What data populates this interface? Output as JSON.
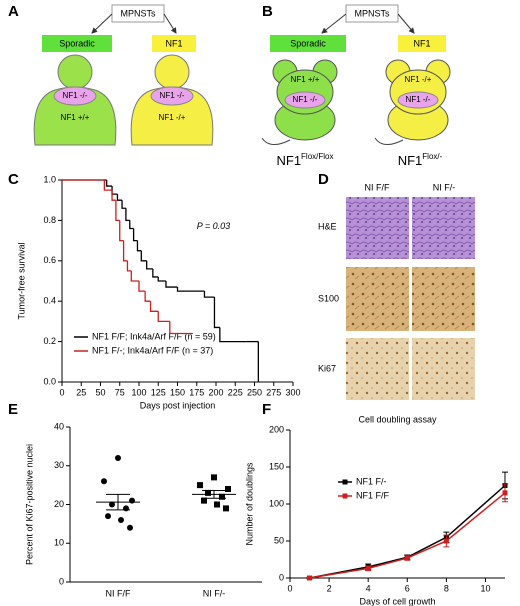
{
  "panel_a": {
    "label": "A",
    "top": "MPNSTs",
    "left": "Sporadic",
    "right": "NF1",
    "left_inner": "NF1 -/-",
    "left_outer": "NF1 +/+",
    "right_inner": "NF1 -/-",
    "right_outer": "NF1 -/+"
  },
  "panel_b": {
    "label": "B",
    "top": "MPNSTs",
    "left": "Sporadic",
    "right": "NF1",
    "left_outer": "NF1 +/+",
    "left_inner": "NF1 -/-",
    "right_outer": "NF1 -/+",
    "right_inner": "NF1 -/-",
    "left_genotype": {
      "base": "NF1",
      "sup": "Flox/Flox"
    },
    "right_genotype": {
      "base": "NF1",
      "sup": "Flox/-"
    }
  },
  "panel_d": {
    "label": "D",
    "columns": [
      "NI F/F",
      "NI F/-"
    ],
    "rows": [
      "H&E",
      "S100",
      "Ki67"
    ]
  },
  "chart_data": [
    {
      "type": "survival",
      "panel_label": "C",
      "ylabel": "Tumor-free survival",
      "xlabel": "Days post injection",
      "annotation": "P = 0.03",
      "xlim": [
        0,
        300
      ],
      "xticks": [
        0,
        25,
        50,
        75,
        100,
        125,
        150,
        175,
        200,
        225,
        250,
        275,
        300
      ],
      "ylim": [
        0,
        1
      ],
      "yticks": [
        {
          "value": 0,
          "label": "0.0"
        },
        {
          "value": 0.2,
          "label": "0.2"
        },
        {
          "value": 0.4,
          "label": "0.4"
        },
        {
          "value": 0.6,
          "label": "0.6"
        },
        {
          "value": 0.8,
          "label": "0.8"
        },
        {
          "value": 1,
          "label": "1.0"
        }
      ],
      "series": [
        {
          "name": "NF1 F/F; Ink4a/Arf F/F (n = 59)",
          "color": "#000000",
          "x": [
            0,
            58,
            65,
            72,
            78,
            83,
            88,
            93,
            98,
            103,
            110,
            118,
            125,
            135,
            150,
            185,
            198,
            205,
            240,
            255
          ],
          "values": [
            1,
            0.97,
            0.93,
            0.9,
            0.86,
            0.8,
            0.76,
            0.7,
            0.65,
            0.6,
            0.56,
            0.52,
            0.5,
            0.47,
            0.45,
            0.42,
            0.27,
            0.2,
            0.2,
            0
          ]
        },
        {
          "name": "NF1 F/-; Ink4a/Arf F/F (n = 37)",
          "color": "#cc1f1f",
          "x": [
            0,
            55,
            65,
            70,
            75,
            80,
            85,
            90,
            100,
            108,
            115,
            125,
            140,
            170
          ],
          "values": [
            1,
            0.95,
            0.9,
            0.8,
            0.7,
            0.6,
            0.55,
            0.5,
            0.45,
            0.4,
            0.35,
            0.3,
            0.24,
            0.24
          ]
        }
      ]
    },
    {
      "type": "dotplot",
      "panel_label": "E",
      "ylabel": "Percent of Ki67-positive nuclei",
      "categories": [
        "NI F/F",
        "NI F/-"
      ],
      "ylim": [
        0,
        40
      ],
      "yticks": [
        0,
        10,
        20,
        30,
        40
      ],
      "groups": [
        {
          "marker": "circle",
          "color": "#000000",
          "values": [
            32,
            26,
            21,
            20,
            19,
            17,
            16,
            14
          ],
          "mean": 20.6,
          "sem": 2.0
        },
        {
          "marker": "square",
          "color": "#000000",
          "values": [
            27,
            25,
            24,
            23,
            22,
            21,
            20,
            19
          ],
          "mean": 22.6,
          "sem": 1.0
        }
      ]
    },
    {
      "type": "line",
      "panel_label": "F",
      "title": "Cell doubling assay",
      "ylabel": "Number of doublings",
      "xlabel": "Days of cell growth",
      "xlim": [
        0,
        11
      ],
      "xticks": [
        0,
        2,
        4,
        6,
        8,
        10
      ],
      "ylim": [
        0,
        200
      ],
      "yticks": [
        0,
        50,
        100,
        150,
        200
      ],
      "series": [
        {
          "name": "NF1 F/-",
          "color": "#000000",
          "x": [
            1,
            4,
            6,
            8,
            11
          ],
          "values": [
            0,
            15,
            28,
            55,
            125
          ],
          "err": [
            1,
            4,
            3,
            7,
            18
          ]
        },
        {
          "name": "NF1 F/F",
          "color": "#cc1f1f",
          "x": [
            1,
            4,
            6,
            8,
            11
          ],
          "values": [
            0,
            13,
            27,
            50,
            115
          ],
          "err": [
            1,
            3,
            3,
            8,
            12
          ]
        }
      ]
    }
  ]
}
